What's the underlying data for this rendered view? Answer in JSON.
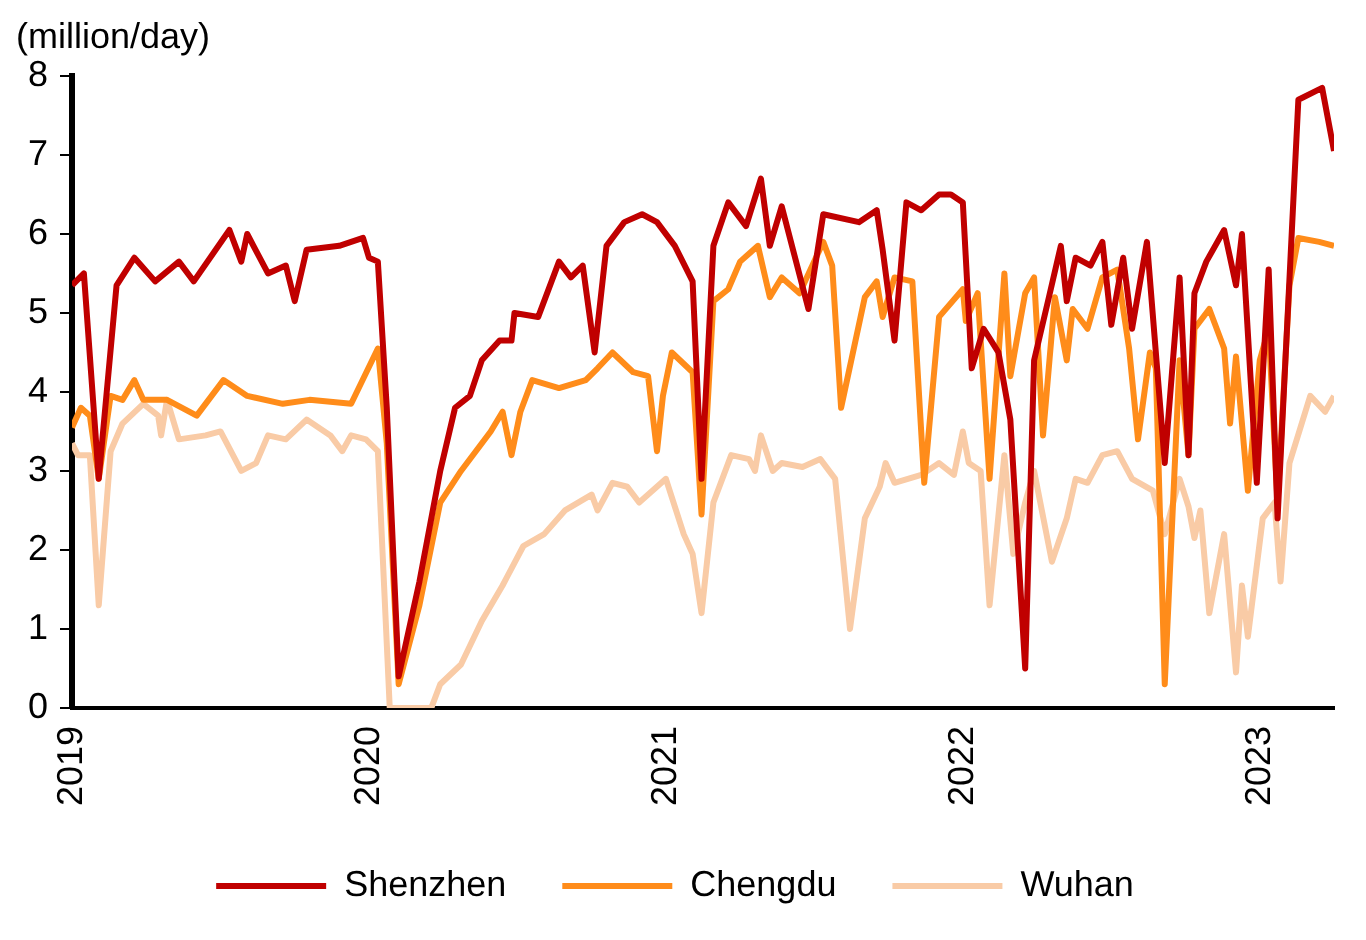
{
  "chart_data": {
    "type": "line",
    "ylabel": "(million/day)",
    "xlim": [
      2019,
      2023.25
    ],
    "xticks": [
      2019,
      2020,
      2021,
      2022,
      2023
    ],
    "ylim": [
      0,
      8
    ],
    "yticks": [
      0,
      1,
      2,
      3,
      4,
      5,
      6,
      7,
      8
    ],
    "grid": false,
    "legend": "bottom",
    "marker": "none",
    "line_style": "solid",
    "series": [
      {
        "name": "Shenzhen",
        "color": "#c00000",
        "x": [
          2019.0,
          2019.04,
          2019.09,
          2019.15,
          2019.21,
          2019.28,
          2019.36,
          2019.41,
          2019.53,
          2019.57,
          2019.59,
          2019.66,
          2019.72,
          2019.75,
          2019.79,
          2019.9,
          2019.98,
          2020.0,
          2020.03,
          2020.06,
          2020.1,
          2020.17,
          2020.24,
          2020.29,
          2020.34,
          2020.38,
          2020.44,
          2020.48,
          2020.49,
          2020.57,
          2020.64,
          2020.68,
          2020.72,
          2020.76,
          2020.8,
          2020.86,
          2020.92,
          2020.97,
          2021.03,
          2021.09,
          2021.12,
          2021.16,
          2021.21,
          2021.27,
          2021.32,
          2021.35,
          2021.39,
          2021.48,
          2021.53,
          2021.65,
          2021.71,
          2021.73,
          2021.77,
          2021.81,
          2021.86,
          2021.92,
          2021.96,
          2022.0,
          2022.03,
          2022.07,
          2022.12,
          2022.16,
          2022.21,
          2022.24,
          2022.29,
          2022.33,
          2022.35,
          2022.38,
          2022.43,
          2022.47,
          2022.5,
          2022.54,
          2022.57,
          2022.62,
          2022.68,
          2022.73,
          2022.76,
          2022.78,
          2022.82,
          2022.88,
          2022.92,
          2022.94,
          2022.99,
          2023.03,
          2023.06,
          2023.13,
          2023.21,
          2023.25
        ],
        "values": [
          5.35,
          5.5,
          2.9,
          5.35,
          5.7,
          5.4,
          5.65,
          5.4,
          6.05,
          5.65,
          6.0,
          5.5,
          5.6,
          5.15,
          5.8,
          5.85,
          5.95,
          5.7,
          5.65,
          3.8,
          0.4,
          1.6,
          3.0,
          3.8,
          3.95,
          4.4,
          4.65,
          4.65,
          5.0,
          4.95,
          5.65,
          5.45,
          5.6,
          4.5,
          5.85,
          6.15,
          6.25,
          6.15,
          5.85,
          5.4,
          2.9,
          5.85,
          6.4,
          6.1,
          6.7,
          5.85,
          6.35,
          5.05,
          6.25,
          6.15,
          6.3,
          5.8,
          4.65,
          6.4,
          6.3,
          6.5,
          6.5,
          6.4,
          4.3,
          4.8,
          4.5,
          3.65,
          0.5,
          4.4,
          5.2,
          5.85,
          5.15,
          5.7,
          5.6,
          5.9,
          4.85,
          5.7,
          4.8,
          5.9,
          3.1,
          5.45,
          3.2,
          5.25,
          5.65,
          6.05,
          5.35,
          6.0,
          2.85,
          5.55,
          2.4,
          7.7,
          7.85,
          7.05
        ]
      },
      {
        "name": "Chengdu",
        "color": "#ff8c1a",
        "x": [
          2019.0,
          2019.03,
          2019.06,
          2019.09,
          2019.13,
          2019.17,
          2019.21,
          2019.24,
          2019.32,
          2019.42,
          2019.51,
          2019.59,
          2019.71,
          2019.8,
          2019.94,
          2020.03,
          2020.06,
          2020.1,
          2020.17,
          2020.24,
          2020.31,
          2020.41,
          2020.45,
          2020.48,
          2020.51,
          2020.55,
          2020.64,
          2020.73,
          2020.77,
          2020.82,
          2020.89,
          2020.94,
          2020.97,
          2020.99,
          2021.02,
          2021.09,
          2021.12,
          2021.16,
          2021.21,
          2021.25,
          2021.31,
          2021.35,
          2021.39,
          2021.45,
          2021.53,
          2021.56,
          2021.59,
          2021.67,
          2021.71,
          2021.73,
          2021.77,
          2021.83,
          2021.87,
          2021.92,
          2022.0,
          2022.01,
          2022.05,
          2022.09,
          2022.14,
          2022.16,
          2022.21,
          2022.24,
          2022.27,
          2022.31,
          2022.35,
          2022.37,
          2022.42,
          2022.47,
          2022.52,
          2022.56,
          2022.59,
          2022.63,
          2022.65,
          2022.68,
          2022.73,
          2022.76,
          2022.78,
          2022.83,
          2022.88,
          2022.9,
          2022.92,
          2022.96,
          2023.0,
          2023.03,
          2023.06,
          2023.1,
          2023.13,
          2023.2,
          2023.25
        ],
        "values": [
          3.55,
          3.8,
          3.7,
          2.9,
          3.95,
          3.9,
          4.15,
          3.9,
          3.9,
          3.7,
          4.15,
          3.95,
          3.85,
          3.9,
          3.85,
          4.55,
          3.35,
          0.3,
          1.3,
          2.6,
          3.0,
          3.5,
          3.75,
          3.2,
          3.75,
          4.15,
          4.05,
          4.15,
          4.3,
          4.5,
          4.25,
          4.2,
          3.25,
          3.95,
          4.5,
          4.25,
          2.45,
          5.15,
          5.3,
          5.65,
          5.85,
          5.2,
          5.45,
          5.25,
          5.9,
          5.6,
          3.8,
          5.2,
          5.4,
          4.95,
          5.45,
          5.4,
          2.85,
          4.95,
          5.3,
          4.9,
          5.25,
          2.9,
          5.5,
          4.2,
          5.25,
          5.45,
          3.45,
          5.2,
          4.4,
          5.05,
          4.8,
          5.45,
          5.55,
          4.55,
          3.4,
          4.5,
          4.3,
          0.3,
          4.4,
          3.2,
          4.8,
          5.05,
          4.55,
          3.6,
          4.45,
          2.75,
          4.4,
          4.8,
          2.6,
          5.35,
          5.95,
          5.9,
          5.85
        ]
      },
      {
        "name": "Wuhan",
        "color": "#f9cba6",
        "x": [
          2019.0,
          2019.02,
          2019.06,
          2019.09,
          2019.13,
          2019.17,
          2019.24,
          2019.29,
          2019.3,
          2019.32,
          2019.36,
          2019.45,
          2019.5,
          2019.57,
          2019.62,
          2019.66,
          2019.72,
          2019.79,
          2019.87,
          2019.91,
          2019.94,
          2019.99,
          2020.03,
          2020.07,
          2020.21,
          2020.24,
          2020.31,
          2020.38,
          2020.45,
          2020.52,
          2020.59,
          2020.66,
          2020.75,
          2020.77,
          2020.82,
          2020.87,
          2020.91,
          2021.0,
          2021.06,
          2021.09,
          2021.12,
          2021.16,
          2021.22,
          2021.28,
          2021.3,
          2021.32,
          2021.36,
          2021.39,
          2021.46,
          2021.52,
          2021.57,
          2021.62,
          2021.67,
          2021.72,
          2021.74,
          2021.77,
          2021.86,
          2021.92,
          2021.97,
          2022.0,
          2022.02,
          2022.06,
          2022.09,
          2022.14,
          2022.17,
          2022.21,
          2022.24,
          2022.3,
          2022.35,
          2022.38,
          2022.42,
          2022.47,
          2022.52,
          2022.57,
          2022.64,
          2022.68,
          2022.73,
          2022.76,
          2022.78,
          2022.8,
          2022.83,
          2022.88,
          2022.92,
          2022.94,
          2022.96,
          2023.01,
          2023.05,
          2023.07,
          2023.1,
          2023.17,
          2023.22,
          2023.25
        ],
        "values": [
          3.35,
          3.2,
          3.2,
          1.3,
          3.25,
          3.6,
          3.85,
          3.7,
          3.45,
          3.9,
          3.4,
          3.45,
          3.5,
          3.0,
          3.1,
          3.45,
          3.4,
          3.65,
          3.45,
          3.25,
          3.45,
          3.4,
          3.25,
          0,
          0,
          0.3,
          0.55,
          1.1,
          1.55,
          2.05,
          2.2,
          2.5,
          2.7,
          2.5,
          2.85,
          2.8,
          2.6,
          2.9,
          2.2,
          1.95,
          1.2,
          2.6,
          3.2,
          3.15,
          3.0,
          3.45,
          3.0,
          3.1,
          3.05,
          3.15,
          2.9,
          1.0,
          2.4,
          2.8,
          3.1,
          2.85,
          2.95,
          3.1,
          2.95,
          3.5,
          3.1,
          3.0,
          1.3,
          3.2,
          1.95,
          2.6,
          3.0,
          1.85,
          2.4,
          2.9,
          2.85,
          3.2,
          3.25,
          2.9,
          2.75,
          2.2,
          2.9,
          2.55,
          2.15,
          2.5,
          1.2,
          2.2,
          0.45,
          1.55,
          0.9,
          2.4,
          2.6,
          1.6,
          3.1,
          3.95,
          3.75,
          3.95
        ]
      }
    ]
  }
}
